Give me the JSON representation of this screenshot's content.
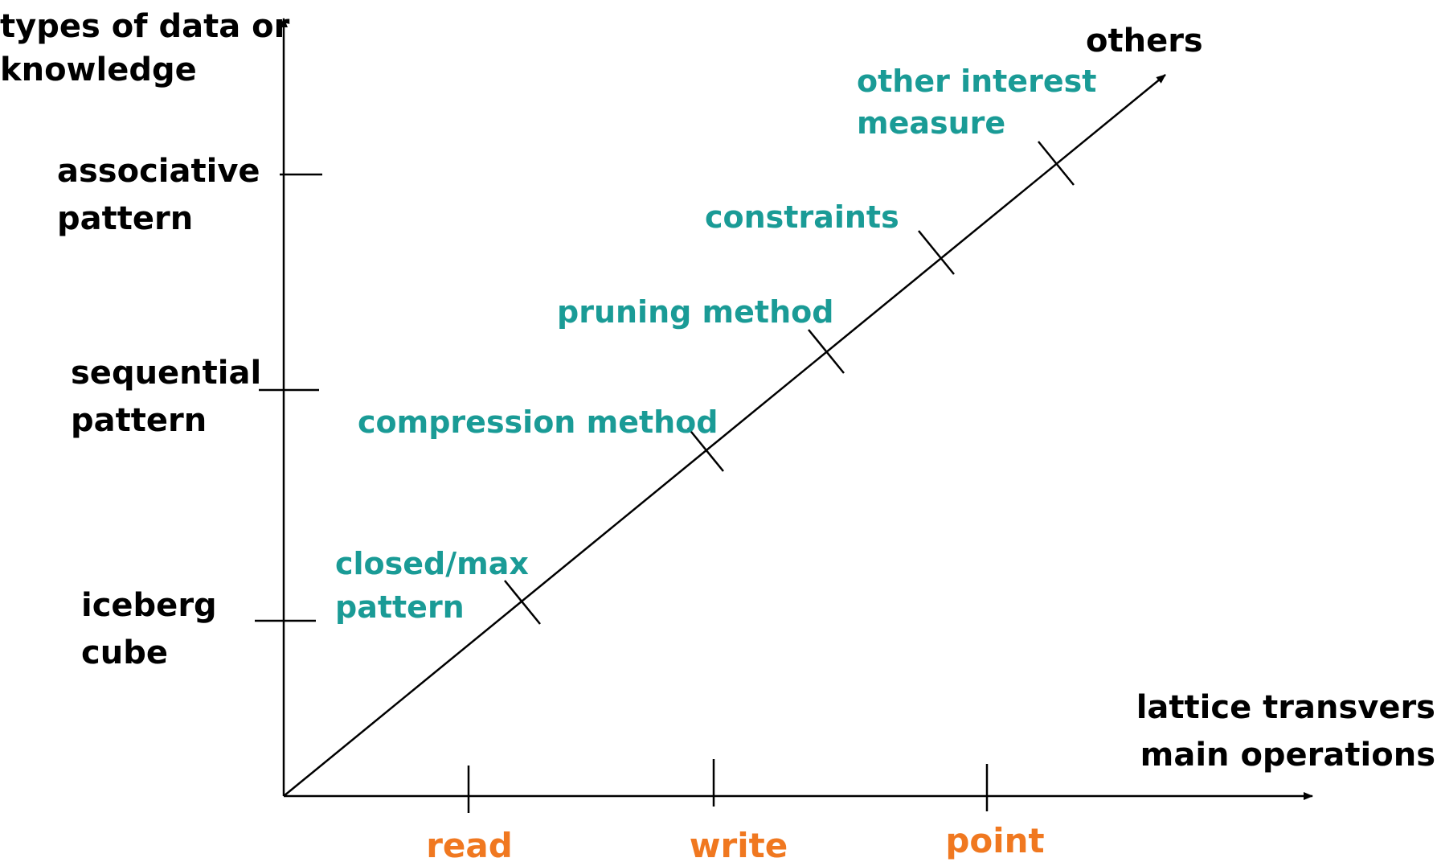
{
  "y_axis": {
    "title": [
      "types of data or",
      "knowledge"
    ],
    "labels": [
      [
        "associative",
        "pattern"
      ],
      [
        "sequential",
        "pattern"
      ],
      [
        "iceberg",
        "cube"
      ]
    ]
  },
  "x_axis": {
    "title": [
      "lattice transvers",
      "main operations"
    ],
    "labels": [
      "read",
      "write",
      "point"
    ]
  },
  "diagonal_axis": {
    "title": "others",
    "labels": [
      [
        "closed/max",
        "pattern"
      ],
      [
        "compression method"
      ],
      [
        "pruning method"
      ],
      [
        "constraints"
      ],
      [
        "other interest",
        "measure"
      ]
    ]
  }
}
